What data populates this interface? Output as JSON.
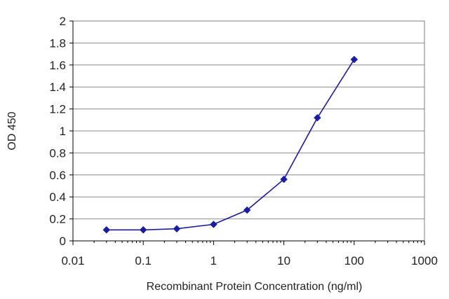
{
  "chart_data": {
    "type": "line",
    "title": "",
    "xlabel": "Recombinant Protein Concentration (ng/ml)",
    "ylabel": "OD 450",
    "x_scale": "log",
    "xlim": [
      0.01,
      1000
    ],
    "ylim": [
      0,
      2
    ],
    "x_ticks": [
      0.01,
      0.1,
      1,
      10,
      100,
      1000
    ],
    "x_tick_labels": [
      "0.01",
      "0.1",
      "1",
      "10",
      "100",
      "1000"
    ],
    "y_ticks": [
      0,
      0.2,
      0.4,
      0.6,
      0.8,
      1,
      1.2,
      1.4,
      1.6,
      1.8,
      2
    ],
    "y_tick_labels": [
      "0",
      "0.2",
      "0.4",
      "0.6",
      "0.8",
      "1",
      "1.2",
      "1.4",
      "1.6",
      "1.8",
      "2"
    ],
    "grid": "horizontal",
    "legend": "none",
    "series": [
      {
        "x": [
          0.03,
          0.1,
          0.3,
          1,
          3,
          10,
          30,
          100
        ],
        "y": [
          0.1,
          0.1,
          0.11,
          0.15,
          0.28,
          0.56,
          1.12,
          1.65
        ],
        "color": "#1c1ca0",
        "marker": "diamond"
      }
    ],
    "colors": {
      "plot_border": "#7f7f7f",
      "gridline": "#8c8c8c",
      "axis": "#000000"
    }
  }
}
